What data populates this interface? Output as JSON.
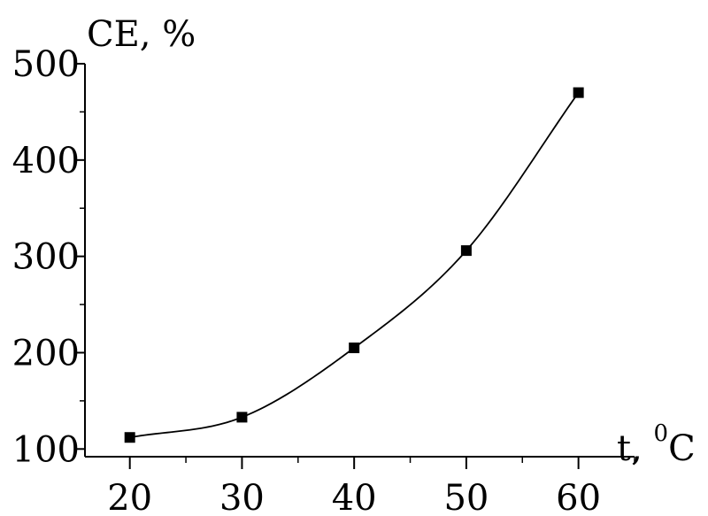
{
  "chart_data": {
    "type": "scatter",
    "xlabel": "t, ",
    "xlabel_superscript": "0",
    "xlabel_unit": "C",
    "ylabel": "CE, %",
    "xlim": [
      16,
      65
    ],
    "ylim": [
      92,
      500
    ],
    "x_ticks": [
      20,
      30,
      40,
      50,
      60
    ],
    "y_ticks": [
      100,
      200,
      300,
      400,
      500
    ],
    "series": [
      {
        "points": [
          {
            "x": 20,
            "y": 112
          },
          {
            "x": 30,
            "y": 133
          },
          {
            "x": 40,
            "y": 205
          },
          {
            "x": 50,
            "y": 306
          },
          {
            "x": 60,
            "y": 470
          }
        ],
        "marker": "square",
        "color": "#000000"
      }
    ],
    "fit_curve": {
      "x_range": [
        18,
        61.5
      ],
      "color": "#000000"
    }
  }
}
